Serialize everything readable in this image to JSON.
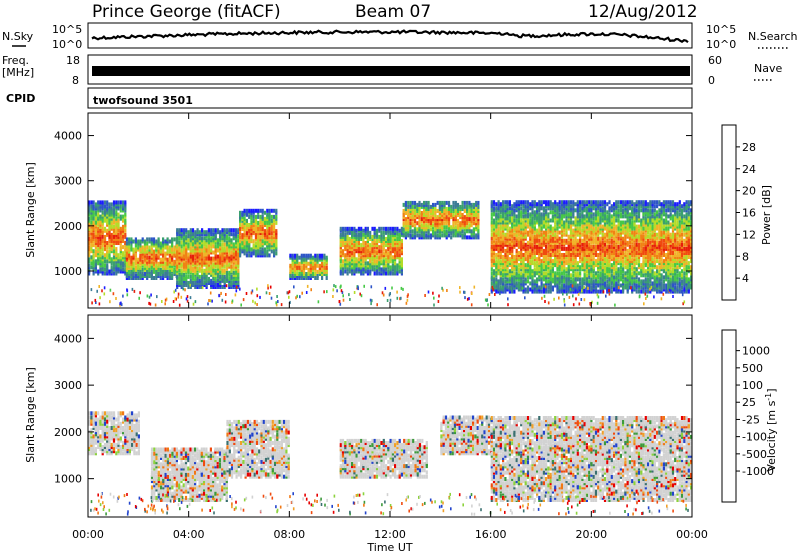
{
  "header": {
    "station": "Prince George (fitACF)",
    "beam": "Beam 07",
    "date": "12/Aug/2012"
  },
  "side_labels": {
    "nsky": "N.Sky",
    "nsearch": "N.Search",
    "freq_line1": "Freq.",
    "freq_line2": "[MHz]",
    "nave": "Nave",
    "cpid": "CPID",
    "cpid_value": "twofsound 3501"
  },
  "noise_panel": {
    "left_ticks": [
      "10^5",
      "10^0"
    ],
    "right_ticks": [
      "10^5",
      "10^0"
    ]
  },
  "freq_panel": {
    "left_ticks": [
      "18",
      "8"
    ],
    "right_ticks": [
      "60",
      "0"
    ]
  },
  "chart_data": [
    {
      "type": "heatmap",
      "panel": "power",
      "xlabel": "",
      "ylabel": "Slant Range [km]",
      "ylim": [
        180,
        4500
      ],
      "yticks": [
        "1000",
        "2000",
        "3000",
        "4000"
      ],
      "colorbar_label": "Power [dB]",
      "colorbar_ticks": [
        "4",
        "8",
        "12",
        "16",
        "20",
        "24",
        "28"
      ],
      "colorbar_colors": [
        "#1b1bff",
        "#2d55c8",
        "#3c7c96",
        "#3aa06e",
        "#46c846",
        "#b4dc28",
        "#f0b428",
        "#f08214",
        "#f04b0f",
        "#e61e0a",
        "#e60000"
      ],
      "bands": [
        {
          "t0": 0.0,
          "t1": 1.5,
          "r0": 900,
          "r1": 2500
        },
        {
          "t0": 1.5,
          "t1": 3.5,
          "r0": 800,
          "r1": 1700
        },
        {
          "t0": 3.5,
          "t1": 6.0,
          "r0": 600,
          "r1": 1900
        },
        {
          "t0": 6.0,
          "t1": 7.5,
          "r0": 1300,
          "r1": 2300
        },
        {
          "t0": 8.0,
          "t1": 9.5,
          "r0": 800,
          "r1": 1300
        },
        {
          "t0": 10.0,
          "t1": 12.5,
          "r0": 900,
          "r1": 1900
        },
        {
          "t0": 12.5,
          "t1": 15.5,
          "r0": 1700,
          "r1": 2500
        },
        {
          "t0": 16.0,
          "t1": 24.0,
          "r0": 500,
          "r1": 2500
        }
      ]
    },
    {
      "type": "heatmap",
      "panel": "velocity",
      "xlabel": "Time UT",
      "ylabel": "Slant Range [km]",
      "ylim": [
        180,
        4500
      ],
      "yticks": [
        "1000",
        "2000",
        "3000",
        "4000"
      ],
      "xticks": [
        "00:00",
        "04:00",
        "08:00",
        "12:00",
        "16:00",
        "20:00",
        "00:00"
      ],
      "xlim_hours": [
        0,
        24
      ],
      "colorbar_label": "Velocity [m s^-1]",
      "colorbar_ticks": [
        "1000",
        "500",
        "100",
        "25",
        "-25",
        "-100",
        "-500",
        "-1000"
      ],
      "colorbar_colors": [
        "#2244cc",
        "#3a7070",
        "#3c9a3c",
        "#8cd23c",
        "#d2d2d2",
        "#d2d2d2",
        "#f0a028",
        "#f07814",
        "#f04b0f",
        "#e60000"
      ],
      "bands": [
        {
          "t0": 0.0,
          "t1": 2.0,
          "r0": 1500,
          "r1": 2400
        },
        {
          "t0": 2.5,
          "t1": 5.5,
          "r0": 500,
          "r1": 1600
        },
        {
          "t0": 5.5,
          "t1": 8.0,
          "r0": 1000,
          "r1": 2200
        },
        {
          "t0": 10.0,
          "t1": 13.5,
          "r0": 1000,
          "r1": 1800
        },
        {
          "t0": 14.0,
          "t1": 16.0,
          "r0": 1500,
          "r1": 2300
        },
        {
          "t0": 16.0,
          "t1": 24.0,
          "r0": 500,
          "r1": 2300
        }
      ]
    }
  ]
}
